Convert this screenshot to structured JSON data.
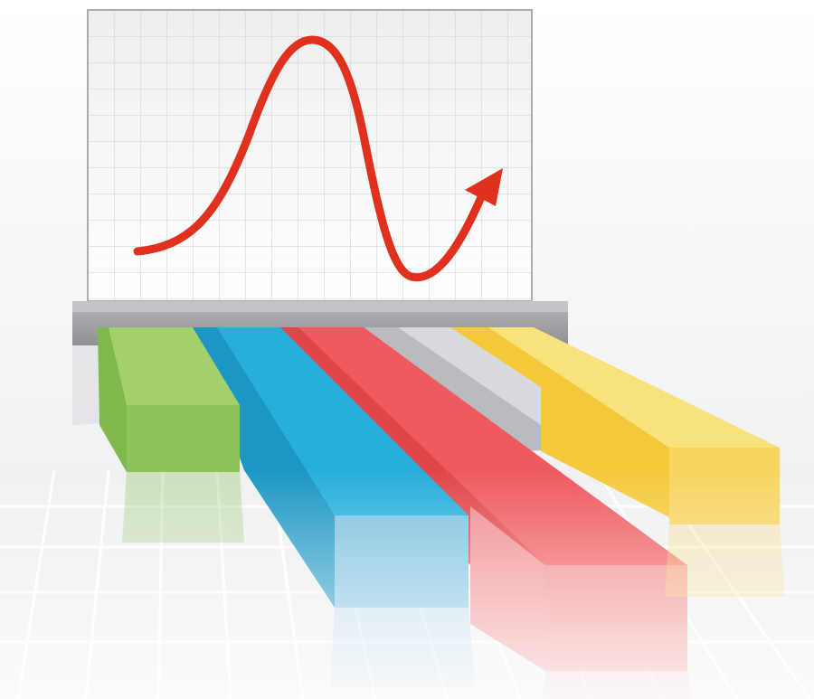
{
  "illustration": {
    "subject": "rising-trend-chart",
    "curve_color": "#e0301e",
    "bars": [
      {
        "name": "green",
        "color": "#8cc35a"
      },
      {
        "name": "blue",
        "color": "#27aedb"
      },
      {
        "name": "red",
        "color": "#ee5a5e"
      },
      {
        "name": "silver",
        "color": "#c4c6ca"
      },
      {
        "name": "yellow",
        "color": "#f5c93c"
      }
    ]
  }
}
